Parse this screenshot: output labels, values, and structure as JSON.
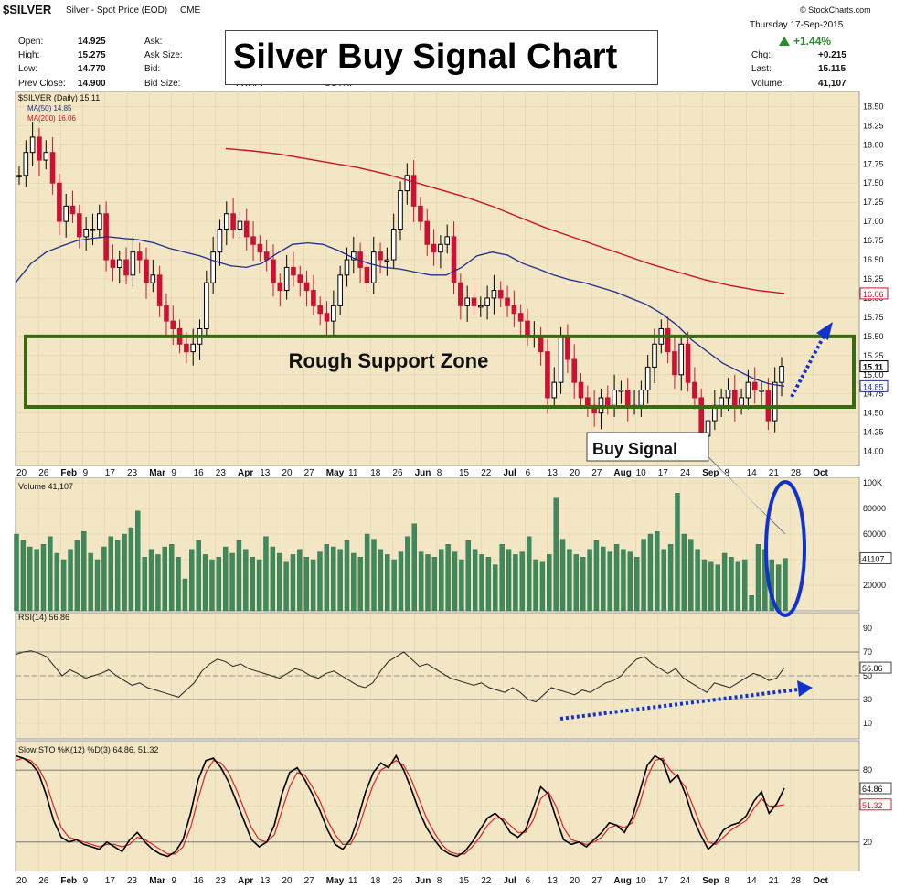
{
  "header": {
    "symbol": "$SILVER",
    "description": "Silver - Spot Price (EOD)",
    "exchange": "CME",
    "copyright": "© StockCharts.com",
    "date": "Thursday  17-Sep-2015",
    "change_pct": "+1.44%",
    "quote_left": [
      {
        "label": "Open:",
        "value": "14.925"
      },
      {
        "label": "High:",
        "value": "15.275"
      },
      {
        "label": "Low:",
        "value": "14.770"
      },
      {
        "label": "Prev Close:",
        "value": "14.900"
      }
    ],
    "quote_mid": [
      "Ask:",
      "Ask Size:",
      "Bid:",
      "Bid Size:"
    ],
    "quote_mid2": [
      "VWAP:",
      "SCTR:"
    ],
    "quote_right": [
      {
        "label": "Chg:",
        "value": "+0.215"
      },
      {
        "label": "Last:",
        "value": "15.115"
      },
      {
        "label": "Volume:",
        "value": "41,107"
      }
    ]
  },
  "annotations": {
    "title_box": "Silver Buy Signal Chart",
    "support_label": "Rough Support Zone",
    "buy_signal": "Buy Signal"
  },
  "colors": {
    "panel_bg": "#f3e6c4",
    "up_candle": "#000000",
    "down_candle": "#cc1133",
    "ma50": "#1c2e8f",
    "ma200": "#cc1122",
    "volume": "#3f8a5d",
    "support_box": "#3a6a10",
    "annotation_blue": "#1133cc",
    "price_tag_ma200": "#cc1122",
    "price_tag_ma50": "#1c2e8f"
  },
  "chart_data": [
    {
      "type": "candlestick",
      "legend": [
        "$SILVER (Daily) 15.11",
        "MA(50) 14.85",
        "MA(200) 16.06"
      ],
      "ylim": [
        13.9,
        18.6
      ],
      "yticks": [
        "14.00",
        "14.25",
        "14.50",
        "14.75",
        "15.00",
        "15.25",
        "15.50",
        "15.75",
        "16.00",
        "16.25",
        "16.50",
        "16.75",
        "17.00",
        "17.25",
        "17.50",
        "17.75",
        "18.00",
        "18.25",
        "18.50"
      ],
      "price_tags": [
        "16.06",
        "15.11",
        "14.85"
      ],
      "close": [
        17.6,
        17.9,
        18.1,
        17.8,
        17.9,
        17.5,
        17.0,
        17.2,
        17.1,
        16.8,
        16.9,
        16.9,
        17.1,
        16.5,
        16.4,
        16.5,
        16.3,
        16.6,
        16.5,
        16.2,
        16.3,
        15.9,
        15.7,
        15.6,
        15.4,
        15.3,
        15.4,
        15.6,
        16.2,
        16.6,
        16.9,
        17.1,
        16.9,
        17.0,
        16.8,
        16.7,
        16.6,
        16.5,
        16.2,
        16.1,
        16.4,
        16.3,
        16.2,
        16.1,
        15.9,
        15.8,
        15.7,
        15.9,
        16.3,
        16.5,
        16.6,
        16.4,
        16.2,
        16.6,
        16.5,
        16.5,
        16.9,
        17.4,
        17.6,
        17.2,
        17.0,
        16.7,
        16.6,
        16.7,
        16.8,
        16.2,
        15.9,
        16.0,
        15.9,
        15.9,
        16.0,
        16.1,
        16.0,
        15.9,
        15.8,
        15.7,
        15.5,
        15.5,
        15.3,
        14.7,
        14.9,
        15.5,
        15.2,
        14.9,
        14.7,
        14.6,
        14.5,
        14.7,
        14.6,
        14.8,
        14.8,
        14.6,
        14.6,
        14.8,
        15.1,
        15.4,
        15.6,
        15.3,
        15.0,
        15.4,
        14.9,
        14.7,
        14.2,
        14.4,
        14.6,
        14.7,
        14.8,
        14.6,
        14.7,
        14.9,
        14.8,
        14.8,
        14.4,
        14.9,
        15.11
      ],
      "ma50": [
        16.2,
        16.45,
        16.6,
        16.68,
        16.75,
        16.78,
        16.8,
        16.78,
        16.76,
        16.72,
        16.65,
        16.6,
        16.55,
        16.48,
        16.42,
        16.4,
        16.45,
        16.58,
        16.7,
        16.72,
        16.7,
        16.62,
        16.52,
        16.45,
        16.4,
        16.38,
        16.34,
        16.3,
        16.3,
        16.4,
        16.55,
        16.6,
        16.56,
        16.45,
        16.38,
        16.3,
        16.24,
        16.2,
        16.14,
        16.08,
        16.0,
        15.92,
        15.8,
        15.65,
        15.45,
        15.3,
        15.15,
        15.05,
        14.95,
        14.88,
        14.85
      ],
      "ma200": [
        17.95,
        17.92,
        17.88,
        17.82,
        17.76,
        17.7,
        17.62,
        17.52,
        17.42,
        17.32,
        17.2,
        17.06,
        16.92,
        16.8,
        16.68,
        16.56,
        16.44,
        16.34,
        16.24,
        16.16,
        16.1,
        16.06
      ]
    },
    {
      "type": "bar",
      "title": "Volume 41,107",
      "ylim": [
        0,
        100000
      ],
      "yticks": [
        "20000",
        "40000",
        "60000",
        "80000",
        "100K"
      ],
      "price_tags": [
        "41107"
      ],
      "values": [
        60,
        55,
        50,
        48,
        52,
        58,
        45,
        40,
        48,
        55,
        62,
        45,
        40,
        50,
        58,
        55,
        60,
        65,
        78,
        42,
        48,
        44,
        50,
        52,
        42,
        25,
        48,
        55,
        44,
        40,
        42,
        50,
        45,
        55,
        48,
        42,
        40,
        58,
        50,
        45,
        38,
        44,
        48,
        42,
        40,
        46,
        52,
        50,
        48,
        55,
        45,
        42,
        60,
        56,
        48,
        44,
        40,
        46,
        58,
        68,
        46,
        44,
        42,
        48,
        52,
        46,
        40,
        55,
        48,
        44,
        42,
        36,
        52,
        48,
        44,
        46,
        58,
        40,
        38,
        44,
        88,
        56,
        48,
        44,
        42,
        48,
        55,
        50,
        46,
        52,
        48,
        46,
        42,
        56,
        60,
        62,
        48,
        52,
        92,
        60,
        56,
        48,
        40,
        38,
        36,
        45,
        42,
        38,
        40,
        12,
        52,
        48,
        40,
        36,
        41
      ],
      "annotations": [
        "ellipse around last bars"
      ]
    },
    {
      "type": "line",
      "title": "RSI(14) 56.86",
      "ylim": [
        0,
        100
      ],
      "yticks": [
        "10",
        "30",
        "50",
        "70",
        "90"
      ],
      "price_tags": [
        "56.86"
      ],
      "values": [
        68,
        70,
        71,
        69,
        66,
        58,
        50,
        55,
        52,
        48,
        50,
        52,
        55,
        50,
        46,
        42,
        44,
        40,
        38,
        36,
        34,
        32,
        38,
        44,
        54,
        60,
        64,
        62,
        58,
        60,
        56,
        54,
        52,
        50,
        48,
        52,
        56,
        54,
        50,
        48,
        52,
        54,
        50,
        46,
        42,
        40,
        44,
        54,
        62,
        66,
        70,
        64,
        58,
        60,
        56,
        52,
        48,
        46,
        44,
        42,
        44,
        40,
        38,
        36,
        40,
        36,
        30,
        28,
        34,
        40,
        38,
        36,
        34,
        38,
        36,
        40,
        44,
        46,
        50,
        58,
        64,
        66,
        60,
        56,
        52,
        56,
        48,
        44,
        40,
        36,
        44,
        42,
        40,
        44,
        48,
        52,
        50,
        46,
        48,
        56.86
      ]
    },
    {
      "type": "line",
      "title": "Slow STO %K(12) %D(3) 64.86, 51.32",
      "series": [
        {
          "name": "%K(12)",
          "values": [
            92,
            90,
            86,
            78,
            60,
            38,
            24,
            20,
            22,
            18,
            16,
            14,
            20,
            16,
            12,
            22,
            28,
            20,
            14,
            10,
            8,
            12,
            22,
            44,
            72,
            88,
            90,
            82,
            70,
            54,
            38,
            22,
            16,
            20,
            34,
            60,
            78,
            82,
            72,
            60,
            46,
            30,
            18,
            14,
            22,
            40,
            62,
            78,
            86,
            82,
            92,
            80,
            64,
            46,
            32,
            22,
            14,
            10,
            8,
            12,
            20,
            30,
            40,
            44,
            38,
            28,
            24,
            30,
            48,
            66,
            60,
            40,
            22,
            18,
            20,
            16,
            22,
            28,
            36,
            34,
            28,
            40,
            62,
            84,
            92,
            88,
            70,
            76,
            60,
            40,
            26,
            14,
            20,
            30,
            34,
            36,
            42,
            54,
            62,
            44,
            52,
            64.86
          ]
        },
        {
          "name": "%D(3)",
          "values": [
            88,
            90,
            88,
            82,
            70,
            50,
            32,
            24,
            22,
            20,
            18,
            16,
            18,
            18,
            16,
            18,
            24,
            22,
            18,
            14,
            10,
            10,
            16,
            32,
            56,
            78,
            88,
            86,
            78,
            64,
            48,
            32,
            22,
            20,
            26,
            46,
            66,
            78,
            76,
            66,
            54,
            38,
            26,
            18,
            18,
            30,
            50,
            68,
            80,
            84,
            88,
            84,
            72,
            56,
            40,
            28,
            18,
            12,
            10,
            10,
            16,
            24,
            34,
            40,
            40,
            34,
            28,
            28,
            38,
            56,
            62,
            50,
            32,
            22,
            20,
            18,
            20,
            24,
            32,
            34,
            32,
            36,
            52,
            74,
            88,
            90,
            80,
            74,
            66,
            50,
            34,
            20,
            18,
            24,
            30,
            34,
            38,
            48,
            56,
            50,
            50,
            51.32
          ]
        }
      ],
      "ylim": [
        0,
        100
      ],
      "yticks": [
        "20",
        "50",
        "80"
      ],
      "price_tags": [
        "64.86",
        "51.32"
      ]
    }
  ],
  "x_axis": {
    "labels": [
      "20",
      "26",
      "Feb",
      "9",
      "17",
      "23",
      "Mar",
      "9",
      "16",
      "23",
      "Apr",
      "13",
      "20",
      "27",
      "May",
      "11",
      "18",
      "26",
      "Jun",
      "8",
      "15",
      "22",
      "Jul",
      "6",
      "13",
      "20",
      "27",
      "Aug",
      "10",
      "17",
      "24",
      "Sep",
      "8",
      "14",
      "21",
      "28",
      "Oct"
    ]
  }
}
